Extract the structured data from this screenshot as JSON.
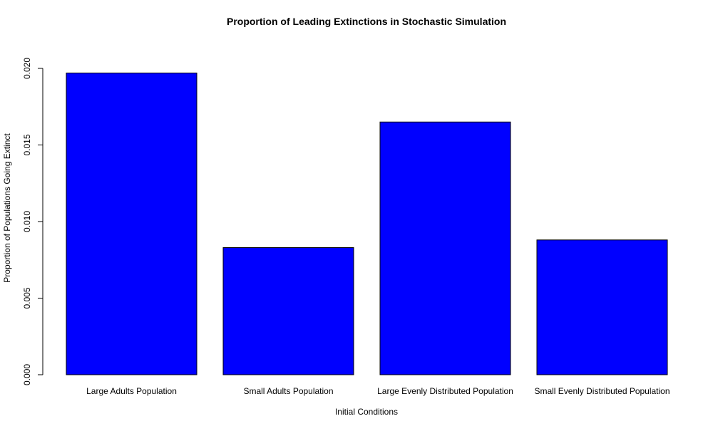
{
  "chart_data": {
    "type": "bar",
    "title": "Proportion of Leading Extinctions in Stochastic Simulation",
    "xlabel": "Initial Conditions",
    "ylabel": "Proportion of Populations Going Extinct",
    "categories": [
      "Large Adults Population",
      "Small Adults Population",
      "Large Evenly Distributed Population",
      "Small Evenly Distributed Population"
    ],
    "values": [
      0.0197,
      0.0083,
      0.0165,
      0.0088
    ],
    "yticks": [
      0,
      0.005,
      0.01,
      0.015,
      0.02
    ],
    "ytick_labels": [
      "0.000",
      "0.005",
      "0.010",
      "0.015",
      "0.020"
    ],
    "ylim": [
      0,
      0.02
    ],
    "grid": false,
    "legend": "none",
    "bar_color": "#0000ff",
    "bar_edge_color": "#000000"
  }
}
